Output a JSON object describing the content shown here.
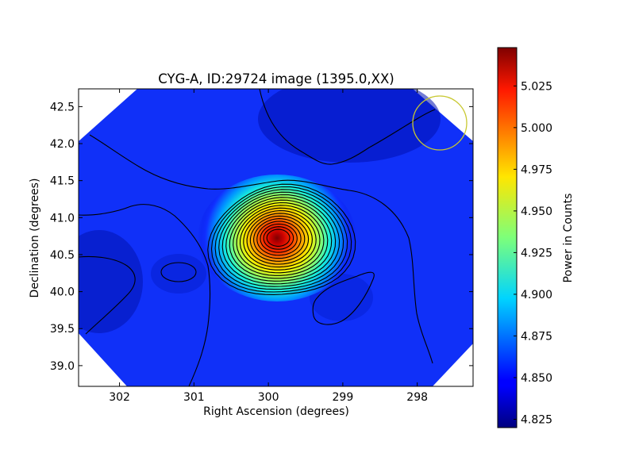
{
  "chart_data": {
    "type": "heatmap",
    "title": "CYG-A, ID:29724 image (1395.0,XX)",
    "xlabel": "Right Ascension (degrees)",
    "ylabel": "Declination (degrees)",
    "colorbar_label": "Power in Counts",
    "colormap": "jet",
    "xlim": [
      302.55,
      297.25
    ],
    "ylim": [
      38.72,
      42.74
    ],
    "x_ticks": [
      302,
      301,
      300,
      299,
      298
    ],
    "x_tick_labels": [
      "302",
      "301",
      "300",
      "299",
      "298"
    ],
    "y_ticks": [
      39.0,
      39.5,
      40.0,
      40.5,
      41.0,
      41.5,
      42.0,
      42.5
    ],
    "y_tick_labels": [
      "39.0",
      "39.5",
      "40.0",
      "40.5",
      "41.0",
      "41.5",
      "42.0",
      "42.5"
    ],
    "colorbar_range": [
      4.82,
      5.048
    ],
    "colorbar_ticks": [
      4.825,
      4.85,
      4.875,
      4.9,
      4.925,
      4.95,
      4.975,
      5.0,
      5.025
    ],
    "colorbar_tick_labels": [
      "4.825",
      "4.850",
      "4.875",
      "4.900",
      "4.925",
      "4.950",
      "4.975",
      "5.000",
      "5.025"
    ],
    "source": {
      "ra": 299.87,
      "dec": 40.73,
      "peak_value": 5.045
    },
    "background_value": 4.848,
    "contour_color": "#000000",
    "beam_marker": {
      "ra": 297.65,
      "dec": 42.29,
      "color": "#c8c830"
    }
  }
}
